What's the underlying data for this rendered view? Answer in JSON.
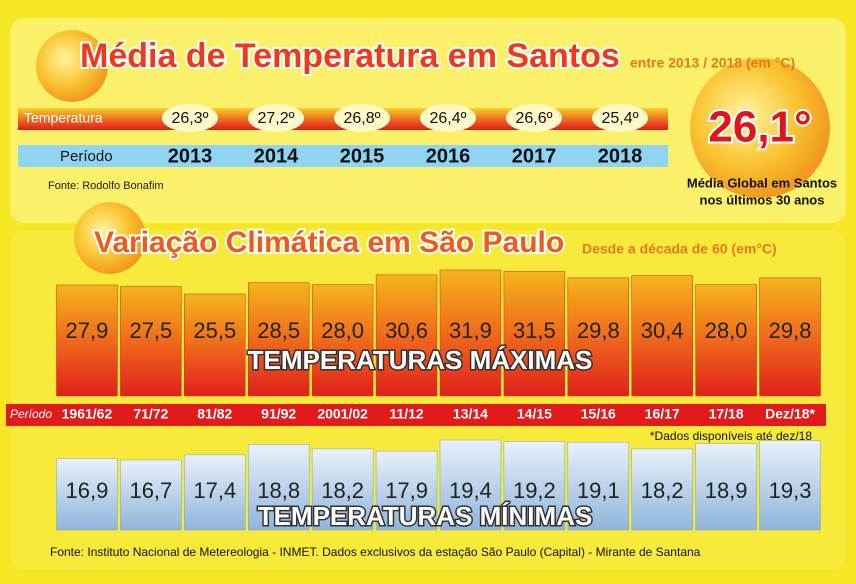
{
  "header": {
    "title": "Média de Temperatura em Santos",
    "subtitle": "entre 2013 / 2018 (em °C)"
  },
  "santos": {
    "row_labels": [
      "Temperatura",
      "Período"
    ],
    "years": [
      "2013",
      "2014",
      "2015",
      "2016",
      "2017",
      "2018"
    ],
    "values": [
      "26,3º",
      "27,2º",
      "26,8º",
      "26,4º",
      "26,6º",
      "25,4º"
    ],
    "source": "Fonte: Rodolfo Bonafim"
  },
  "global": {
    "value": "26,1°",
    "caption": [
      "Média Global em Santos",
      "nos últimos 30 anos"
    ]
  },
  "chart_data": {
    "type": "bar",
    "title": "Variação Climática em São Paulo",
    "subtitle": "Desde a década de 60 (em°C)",
    "period_label": "Período",
    "categories": [
      "1961/62",
      "71/72",
      "81/82",
      "91/92",
      "2001/02",
      "11/12",
      "13/14",
      "14/15",
      "15/16",
      "16/17",
      "17/18",
      "Dez/18*"
    ],
    "series": [
      {
        "name": "TEMPERATURAS MÁXIMAS",
        "values": [
          27.9,
          27.5,
          25.5,
          28.5,
          28.0,
          30.6,
          31.9,
          31.5,
          29.8,
          30.4,
          28.0,
          29.8
        ],
        "value_labels": [
          "27,9",
          "27,5",
          "25,5",
          "28,5",
          "28,0",
          "30,6",
          "31,9",
          "31,5",
          "29,8",
          "30,4",
          "28,0",
          "29,8"
        ]
      },
      {
        "name": "TEMPERATURAS MÍNIMAS",
        "values": [
          16.9,
          16.7,
          17.4,
          18.8,
          18.2,
          17.9,
          19.4,
          19.2,
          19.1,
          18.2,
          18.9,
          19.3
        ],
        "value_labels": [
          "16,9",
          "16,7",
          "17,4",
          "18,8",
          "18,2",
          "17,9",
          "19,4",
          "19,2",
          "19,1",
          "18,2",
          "18,9",
          "19,3"
        ]
      }
    ],
    "note": "*Dados disponíveis até dez/18"
  },
  "footer": "Fonte: Instituto Nacional de Metereologia - INMET. Dados exclusivos da estação São Paulo (Capital) - Mirante de Santana"
}
